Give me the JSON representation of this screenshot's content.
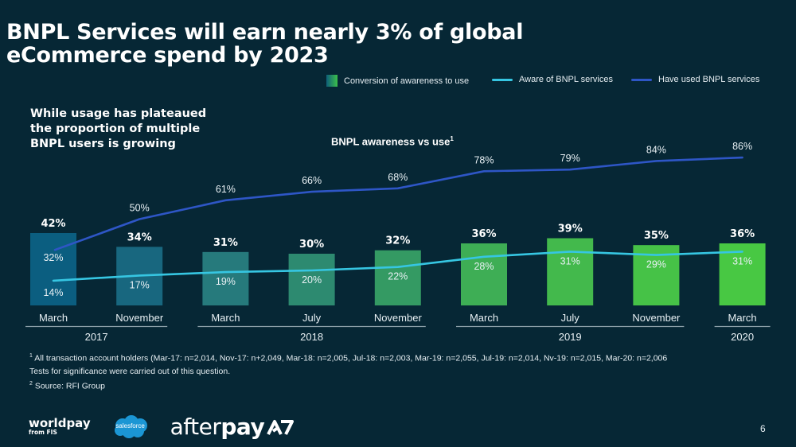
{
  "slide": {
    "title_line1": "BNPL Services will earn nearly 3% of global",
    "title_line2": "eCommerce spend by 2023",
    "subheading_line1": "While usage has plateaued",
    "subheading_line2": "the proportion of multiple",
    "subheading_line3": "BNPL users is growing",
    "page_number": "6",
    "footnotes": {
      "note1_marker": "1",
      "note1": "All transaction account holders (Mar-17: n=2,014, Nov-17: n+2,049, Mar-18: n=2,005, Jul-18: n=2,003, Mar-19: n=2,055, Jul-19: n=2,014, Nv-19: n=2,015, Mar-20: n=2,006",
      "note_tests": "Tests for significance were carried out of this question.",
      "note2_marker": "2",
      "note2": "Source: RFI Group"
    },
    "logos": {
      "worldpay": "worldpay",
      "worldpay_sub": "from FIS",
      "salesforce": "salesforce",
      "afterpay_light": "after",
      "afterpay_bold": "pay"
    }
  },
  "chart_data": {
    "type": "bar",
    "title": "BNPL awareness vs use",
    "title_superscript": "1",
    "categories": [
      "March",
      "November",
      "March",
      "July",
      "November",
      "March",
      "July",
      "November",
      "March"
    ],
    "year_groups": [
      {
        "label": "2017",
        "span": [
          0,
          1
        ]
      },
      {
        "label": "2018",
        "span": [
          2,
          4
        ]
      },
      {
        "label": "2019",
        "span": [
          5,
          7
        ]
      },
      {
        "label": "2020",
        "span": [
          8,
          8
        ]
      }
    ],
    "legend_position": "top-right",
    "legend": [
      "Conversion of awareness to use",
      "Aware of BNPL services",
      "Have used BNPL services"
    ],
    "series": [
      {
        "name": "Conversion of awareness to use",
        "kind": "bar",
        "values": [
          42,
          34,
          31,
          30,
          32,
          36,
          39,
          35,
          36
        ],
        "labels": [
          "42%",
          "34%",
          "31%",
          "30%",
          "32%",
          "36%",
          "39%",
          "35%",
          "36%"
        ]
      },
      {
        "name": "Have used BNPL services",
        "kind": "line",
        "color": "#2e56c6",
        "values": [
          32,
          50,
          61,
          66,
          68,
          78,
          79,
          84,
          86
        ],
        "labels": [
          "32%",
          "50%",
          "61%",
          "66%",
          "68%",
          "78%",
          "79%",
          "84%",
          "86%"
        ]
      },
      {
        "name": "Aware of BNPL services",
        "kind": "line",
        "color": "#36c6e2",
        "values": [
          14,
          17,
          19,
          20,
          22,
          28,
          31,
          29,
          31
        ],
        "labels": [
          "14%",
          "17%",
          "19%",
          "20%",
          "22%",
          "28%",
          "31%",
          "29%",
          "31%"
        ]
      }
    ],
    "bar_colors": [
      "#0b5e80",
      "#18677f",
      "#267a7c",
      "#2d8a70",
      "#349a63",
      "#3eae55",
      "#43b94c",
      "#46c247",
      "#48c843"
    ],
    "ylim": [
      0,
      100
    ],
    "grid": false,
    "xlabel": "",
    "ylabel": ""
  }
}
